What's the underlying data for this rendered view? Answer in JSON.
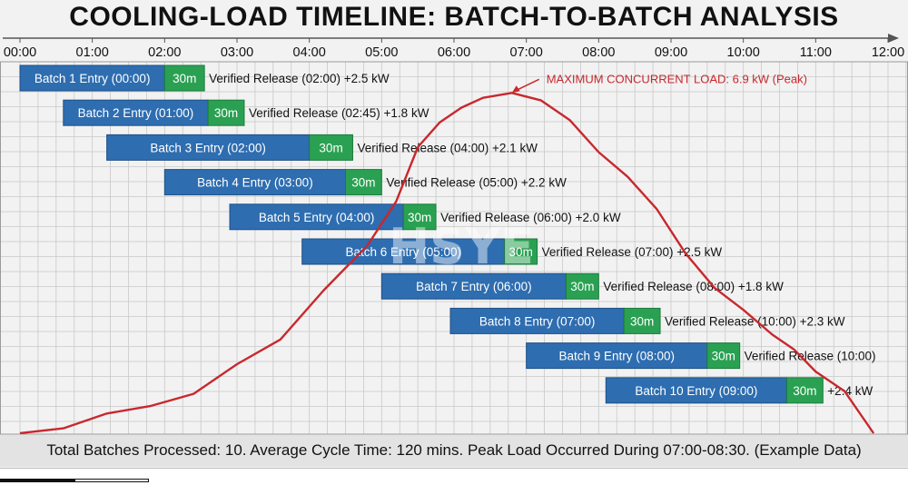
{
  "title": "COOLING-LOAD TIMELINE: BATCH-TO-BATCH ANALYSIS",
  "footer": "Total Batches Processed: 10. Average Cycle Time: 120 mins. Peak Load Occurred During 07:00-08:30. (Example Data)",
  "chart_data": {
    "type": "gantt",
    "x_unit": "hours",
    "x_range": [
      0,
      12
    ],
    "tick_labels": [
      "00:00",
      "01:00",
      "02:00",
      "03:00",
      "04:00",
      "05:00",
      "06:00",
      "07:00",
      "08:00",
      "09:00",
      "10:00",
      "11:00",
      "12:00"
    ],
    "grid": true,
    "batches": [
      {
        "label": "Batch 1 Entry (00:00)",
        "start": 0.0,
        "entry_end": 2.0,
        "hold_end": 2.55,
        "hold_label": "30m",
        "release_label": "Verified Release (02:00)",
        "load_label": "+2.5 kW"
      },
      {
        "label": "Batch 2 Entry (01:00)",
        "start": 0.6,
        "entry_end": 2.6,
        "hold_end": 3.1,
        "hold_label": "30m",
        "release_label": "Verified Release (02:45)",
        "load_label": "+1.8 kW"
      },
      {
        "label": "Batch 3 Entry (02:00)",
        "start": 1.2,
        "entry_end": 4.0,
        "hold_end": 4.6,
        "hold_label": "30m",
        "release_label": "Verified Release (04:00)",
        "load_label": "+2.1 kW"
      },
      {
        "label": "Batch 4 Entry (03:00)",
        "start": 2.0,
        "entry_end": 4.5,
        "hold_end": 5.0,
        "hold_label": "30m",
        "release_label": "Verified Release (05:00)",
        "load_label": "+2.2 kW"
      },
      {
        "label": "Batch 5 Entry (04:00)",
        "start": 2.9,
        "entry_end": 5.3,
        "hold_end": 5.75,
        "hold_label": "30m",
        "release_label": "Verified Release (06:00)",
        "load_label": "+2.0 kW"
      },
      {
        "label": "Batch 6 Entry (05:00)",
        "start": 3.9,
        "entry_end": 6.7,
        "hold_end": 7.15,
        "hold_label": "30m",
        "release_label": "Verified Release (07:00)",
        "load_label": "+2.5 kW"
      },
      {
        "label": "Batch 7 Entry (06:00)",
        "start": 5.0,
        "entry_end": 7.55,
        "hold_end": 8.0,
        "hold_label": "30m",
        "release_label": "Verified Release (08:00)",
        "load_label": "+1.8 kW"
      },
      {
        "label": "Batch 8 Entry (07:00)",
        "start": 5.95,
        "entry_end": 8.35,
        "hold_end": 8.85,
        "hold_label": "30m",
        "release_label": "Verified Release (10:00)",
        "load_label": "+2.3 kW"
      },
      {
        "label": "Batch 9 Entry (08:00)",
        "start": 7.0,
        "entry_end": 9.5,
        "hold_end": 9.95,
        "hold_label": "30m",
        "release_label": "Verified Release (10:00)",
        "load_label": ""
      },
      {
        "label": "Batch 10 Entry (09:00)",
        "start": 8.1,
        "entry_end": 10.6,
        "hold_end": 11.1,
        "hold_label": "30m",
        "release_label": "",
        "load_label": "+2.4 kW"
      }
    ],
    "load_curve": {
      "x": [
        0.0,
        0.6,
        1.2,
        1.8,
        2.4,
        3.0,
        3.6,
        4.2,
        4.8,
        5.2,
        5.5,
        5.8,
        6.1,
        6.4,
        6.8,
        7.2,
        7.6,
        8.0,
        8.4,
        8.8,
        9.2,
        9.6,
        10.0,
        10.4,
        10.7,
        11.0,
        11.4,
        11.8
      ],
      "y": [
        0.0,
        0.1,
        0.4,
        0.55,
        0.8,
        1.4,
        1.9,
        2.9,
        3.8,
        4.7,
        5.8,
        6.3,
        6.6,
        6.8,
        6.9,
        6.75,
        6.35,
        5.7,
        5.2,
        4.55,
        3.65,
        2.95,
        2.5,
        2.0,
        1.7,
        1.25,
        0.85,
        0.0
      ],
      "y_range": [
        0,
        7.2
      ],
      "color": "#c8282e"
    },
    "annotation": {
      "text": "MAXIMUM CONCURRENT LOAD: 6.9 kW (Peak)",
      "x": 6.8,
      "y": 6.9
    },
    "watermark": "HSYE",
    "colors": {
      "entry": "#2e6db0",
      "hold": "#2aa152",
      "curve": "#c8282e",
      "grid": "#c9c9c9"
    }
  }
}
